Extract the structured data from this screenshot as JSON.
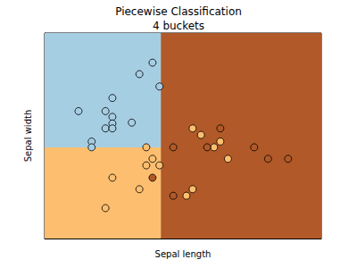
{
  "chart_data": {
    "type": "scatter",
    "title": "Piecewise Classification\n4 buckets",
    "x_label": "Sepal length",
    "y_label": "Sepal width",
    "xlim": [
      4.0,
      8.0
    ],
    "ylim": [
      2.0,
      4.5
    ],
    "tick_labels": false,
    "grid": false,
    "regions": [
      {
        "x": [
          4.0,
          5.68
        ],
        "y": [
          3.11,
          4.5
        ],
        "color": "#a6cee3"
      },
      {
        "x": [
          4.0,
          5.68
        ],
        "y": [
          2.0,
          3.11
        ],
        "color": "#fdbf6f"
      },
      {
        "x": [
          5.68,
          8.0
        ],
        "y": [
          2.0,
          4.5
        ],
        "color": "#b15928"
      }
    ],
    "series": [
      {
        "color": "#a6cee3",
        "marker": "circle",
        "points": [
          [
            5.56,
            4.14
          ],
          [
            5.37,
            4.0
          ],
          [
            5.66,
            3.85
          ],
          [
            4.98,
            3.71
          ],
          [
            4.49,
            3.55
          ],
          [
            4.88,
            3.55
          ],
          [
            4.98,
            3.48
          ],
          [
            4.98,
            3.4
          ],
          [
            5.26,
            3.41
          ],
          [
            4.88,
            3.34
          ],
          [
            4.98,
            3.34
          ],
          [
            4.68,
            3.18
          ],
          [
            4.68,
            3.11
          ]
        ]
      },
      {
        "color": "#fdbf6f",
        "marker": "circle",
        "points": [
          [
            5.47,
            3.11
          ],
          [
            6.14,
            3.34
          ],
          [
            6.26,
            3.26
          ],
          [
            6.45,
            3.11
          ],
          [
            6.54,
            3.18
          ],
          [
            6.65,
            2.97
          ],
          [
            5.47,
            2.89
          ],
          [
            5.56,
            2.97
          ],
          [
            5.66,
            2.89
          ],
          [
            4.98,
            2.74
          ],
          [
            5.37,
            2.6
          ],
          [
            4.88,
            2.37
          ],
          [
            6.14,
            2.6
          ],
          [
            6.05,
            2.52
          ]
        ]
      },
      {
        "color": "#b15928",
        "marker": "circle",
        "points": [
          [
            5.86,
            3.11
          ],
          [
            6.35,
            3.11
          ],
          [
            6.54,
            3.34
          ],
          [
            7.03,
            3.11
          ],
          [
            7.23,
            2.97
          ],
          [
            7.52,
            2.97
          ],
          [
            5.86,
            2.52
          ],
          [
            5.56,
            2.74
          ]
        ]
      }
    ]
  }
}
